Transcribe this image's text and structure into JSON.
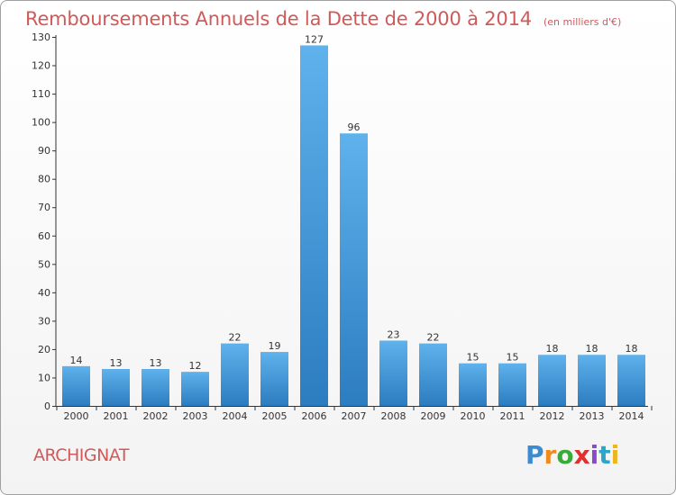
{
  "header": {
    "title": "Remboursements Annuels de la Dette de 2000 à 2014",
    "unit": "(en milliers d'€)"
  },
  "commune": "ARCHIGNAT",
  "logo": {
    "text": "Proxiti",
    "letter_colors": [
      "#3a8bd0",
      "#f08a1c",
      "#3aaa3a",
      "#e0302f",
      "#8a4ac8",
      "#2aa6c8",
      "#f0b41c"
    ]
  },
  "colors": {
    "bar_top": "#5fb2ec",
    "bar_bottom": "#2c7cc0",
    "axis": "#333333",
    "title": "#d05a5a"
  },
  "chart_data": {
    "type": "bar",
    "title": "Remboursements Annuels de la Dette de 2000 à 2014",
    "unit": "(en milliers d'€)",
    "categories": [
      "2000",
      "2001",
      "2002",
      "2003",
      "2004",
      "2005",
      "2006",
      "2007",
      "2008",
      "2009",
      "2010",
      "2011",
      "2012",
      "2013",
      "2014"
    ],
    "values": [
      14,
      13,
      13,
      12,
      22,
      19,
      127,
      96,
      23,
      22,
      15,
      15,
      18,
      18,
      18
    ],
    "ylim": [
      0,
      130
    ],
    "yticks": [
      0,
      10,
      20,
      30,
      40,
      50,
      60,
      70,
      80,
      90,
      100,
      110,
      120,
      130
    ],
    "grid": false,
    "legend": "none"
  }
}
